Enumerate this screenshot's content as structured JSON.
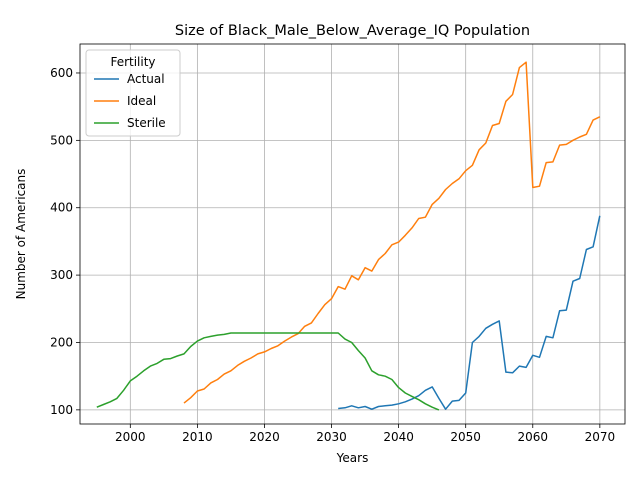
{
  "chart_data": {
    "type": "line",
    "title": "Size of Black_Male_Below_Average_IQ Population",
    "xlabel": "Years",
    "ylabel": "Number of Americans",
    "xlim": [
      1992.5,
      2073.75
    ],
    "ylim": [
      79,
      643
    ],
    "xticks": [
      2000,
      2010,
      2020,
      2030,
      2040,
      2050,
      2060,
      2070
    ],
    "yticks": [
      100,
      200,
      300,
      400,
      500,
      600
    ],
    "grid": true,
    "legend": {
      "title": "Fertility",
      "position": "top-left"
    },
    "series": [
      {
        "name": "Actual",
        "color": "#1f77b4",
        "x": [
          2031,
          2032,
          2033,
          2034,
          2035,
          2036,
          2037,
          2038,
          2039,
          2040,
          2041,
          2042,
          2043,
          2044,
          2045,
          2046,
          2047,
          2048,
          2049,
          2050,
          2051,
          2052,
          2053,
          2054,
          2055,
          2056,
          2057,
          2058,
          2059,
          2060,
          2061,
          2062,
          2063,
          2064,
          2065,
          2066,
          2067,
          2068,
          2069,
          2070
        ],
        "y": [
          102,
          103,
          106,
          103,
          105,
          101,
          105,
          106,
          107,
          109,
          112,
          116,
          121,
          129,
          134,
          117,
          101,
          113,
          114,
          125,
          200,
          209,
          221,
          227,
          232,
          156,
          155,
          165,
          163,
          181,
          178,
          209,
          207,
          247,
          248,
          291,
          295,
          338,
          342,
          388
        ]
      },
      {
        "name": "Ideal",
        "color": "#ff7f0e",
        "x": [
          2008,
          2009,
          2010,
          2011,
          2012,
          2013,
          2014,
          2015,
          2016,
          2017,
          2018,
          2019,
          2020,
          2021,
          2022,
          2023,
          2024,
          2025,
          2026,
          2027,
          2028,
          2029,
          2030,
          2031,
          2032,
          2033,
          2034,
          2035,
          2036,
          2037,
          2038,
          2039,
          2040,
          2041,
          2042,
          2043,
          2044,
          2045,
          2046,
          2047,
          2048,
          2049,
          2050,
          2051,
          2052,
          2053,
          2054,
          2055,
          2056,
          2057,
          2058,
          2059,
          2060,
          2061,
          2062,
          2063,
          2064,
          2065,
          2066,
          2067,
          2068,
          2069,
          2070
        ],
        "y": [
          110,
          118,
          128,
          131,
          140,
          145,
          153,
          158,
          166,
          172,
          177,
          183,
          186,
          191,
          195,
          202,
          208,
          213,
          224,
          229,
          243,
          256,
          265,
          283,
          279,
          299,
          293,
          311,
          306,
          323,
          332,
          345,
          349,
          359,
          370,
          384,
          386,
          405,
          414,
          427,
          436,
          443,
          455,
          463,
          486,
          496,
          522,
          525,
          558,
          568,
          608,
          616,
          430,
          432,
          467,
          468,
          493,
          494,
          500,
          505,
          509,
          530,
          535
        ]
      },
      {
        "name": "Sterile",
        "color": "#2ca02c",
        "x": [
          1995,
          1996,
          1997,
          1998,
          1999,
          2000,
          2001,
          2002,
          2003,
          2004,
          2005,
          2006,
          2007,
          2008,
          2009,
          2010,
          2011,
          2012,
          2013,
          2014,
          2015,
          2016,
          2017,
          2018,
          2019,
          2020,
          2021,
          2022,
          2023,
          2024,
          2025,
          2026,
          2027,
          2028,
          2029,
          2030,
          2031,
          2032,
          2033,
          2034,
          2035,
          2036,
          2037,
          2038,
          2039,
          2040,
          2041,
          2042,
          2043,
          2044,
          2045,
          2046
        ],
        "y": [
          104,
          108,
          112,
          117,
          129,
          143,
          150,
          158,
          165,
          169,
          175,
          176,
          180,
          183,
          194,
          202,
          207,
          209,
          211,
          212,
          214,
          214,
          214,
          214,
          214,
          214,
          214,
          214,
          214,
          214,
          214,
          214,
          214,
          214,
          214,
          214,
          214,
          205,
          200,
          188,
          177,
          158,
          152,
          150,
          145,
          133,
          125,
          120,
          115,
          109,
          104,
          100
        ]
      }
    ]
  }
}
